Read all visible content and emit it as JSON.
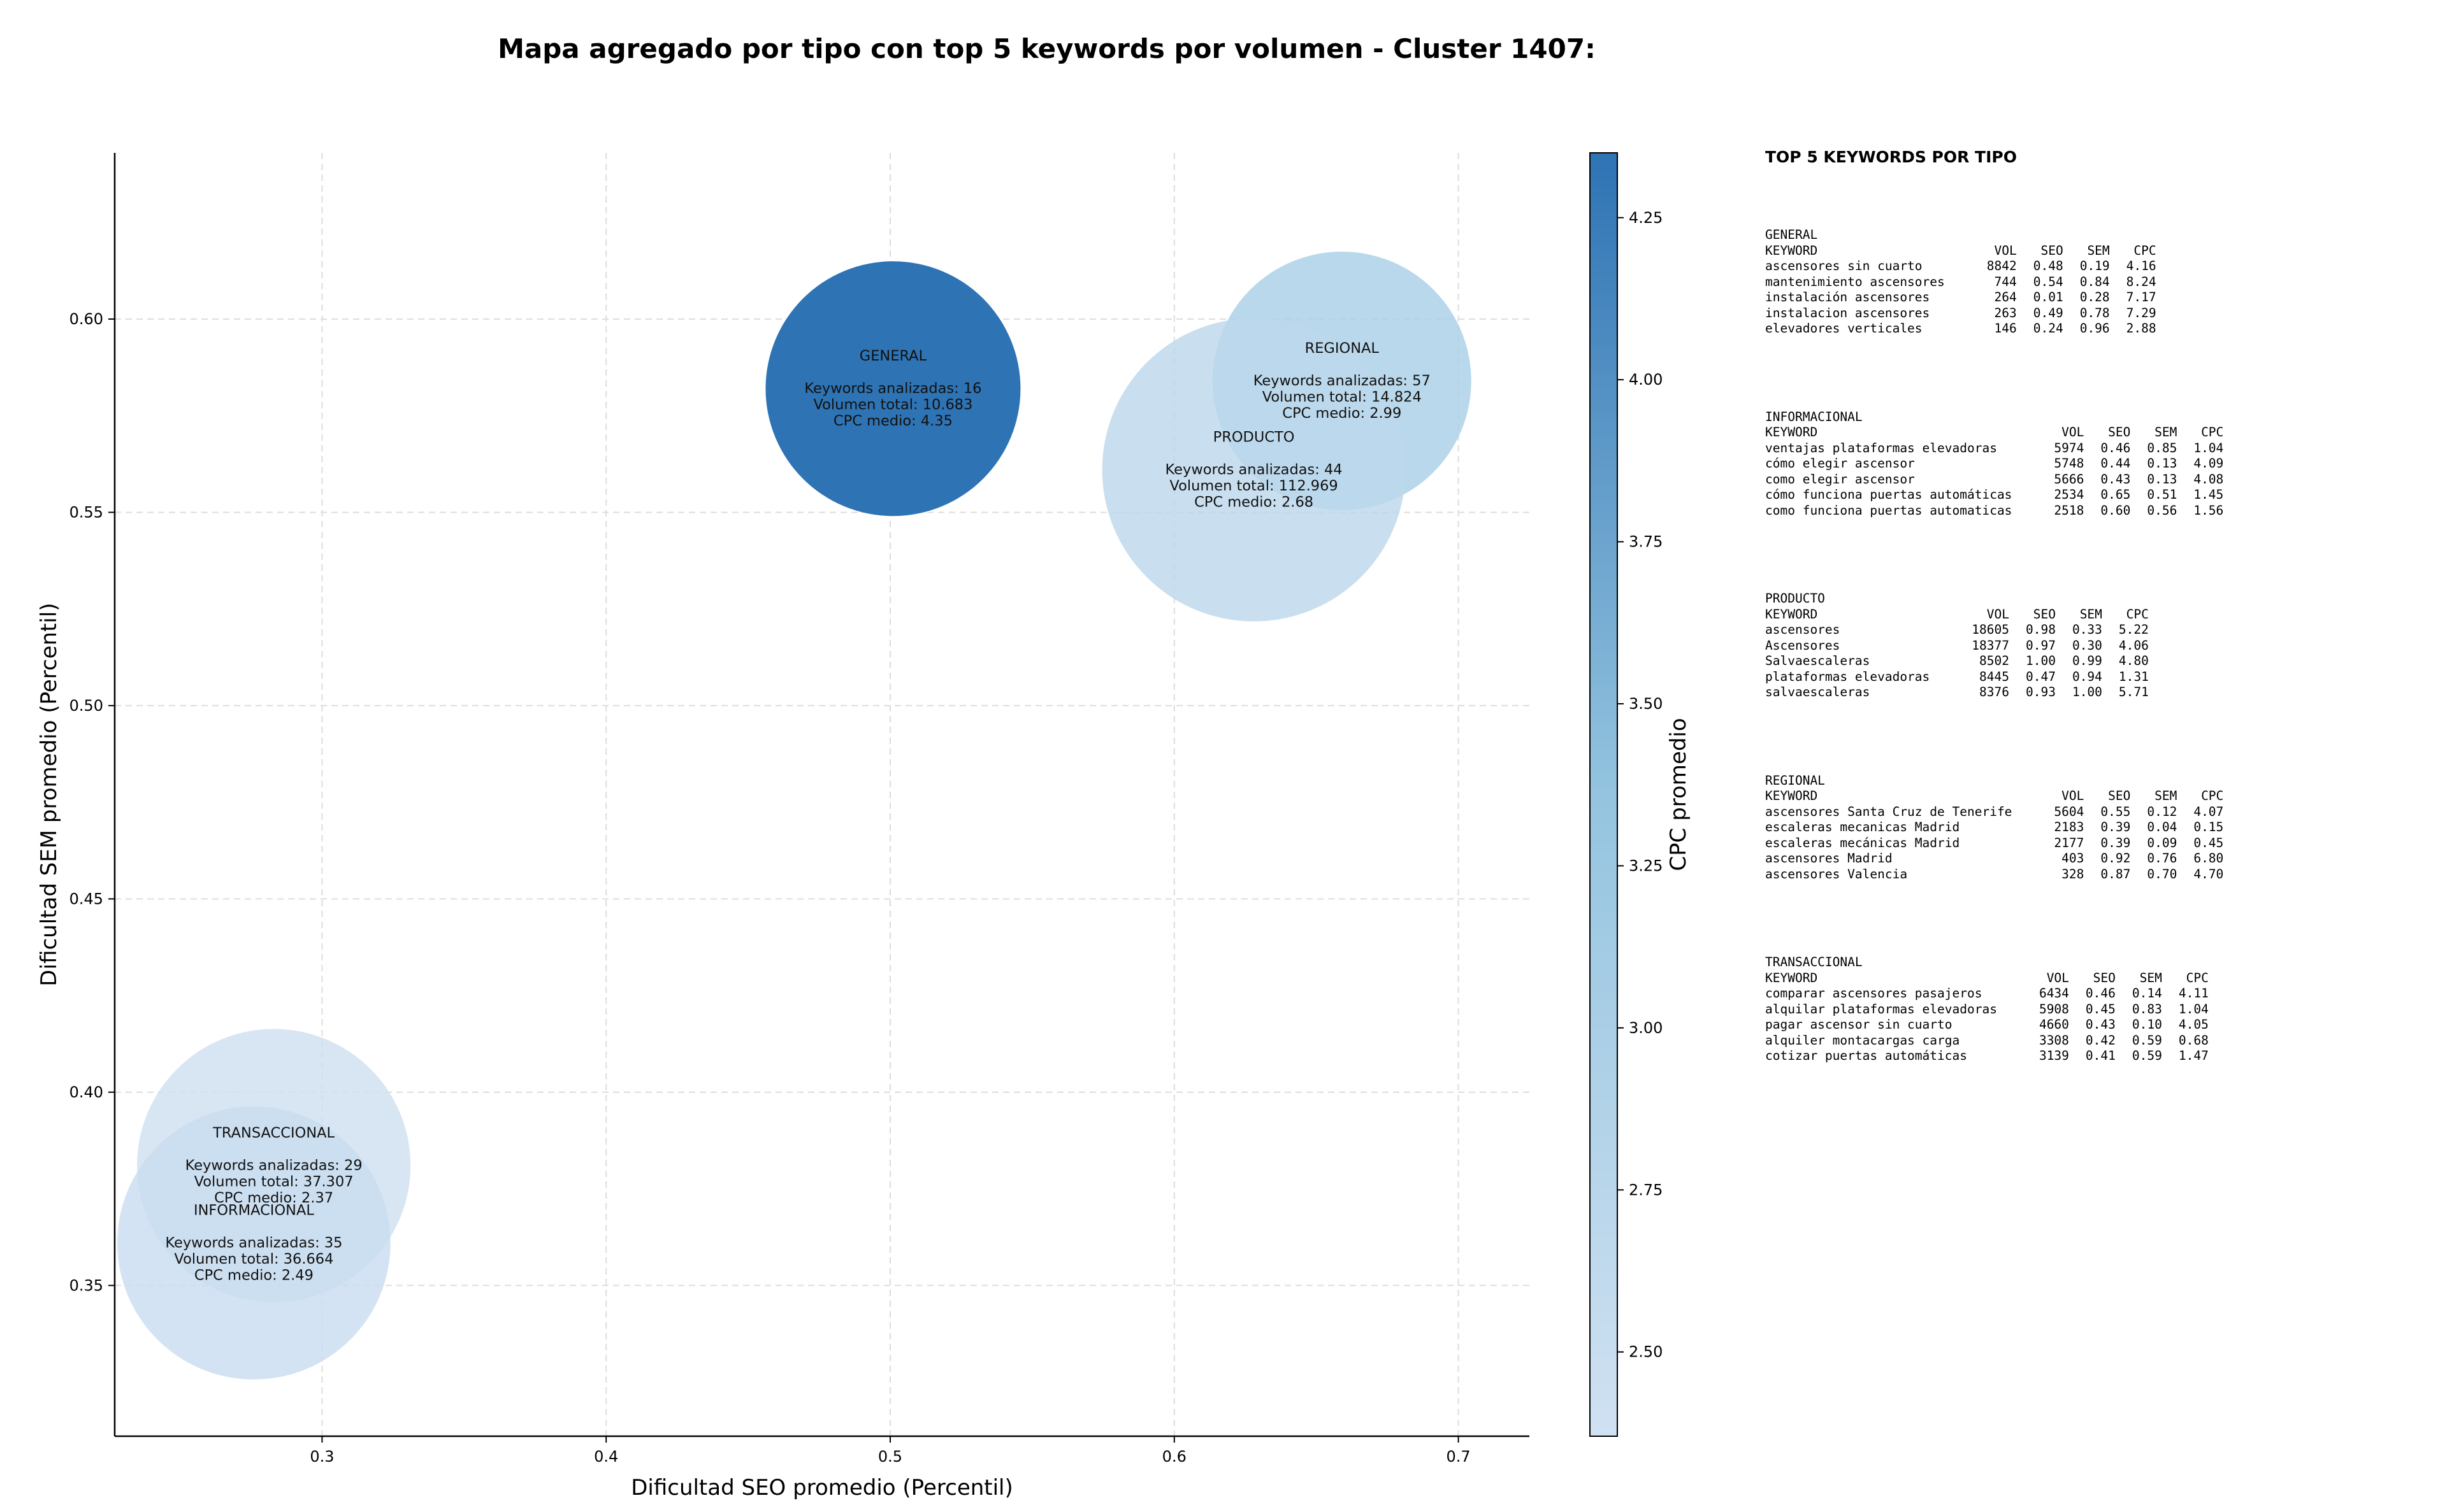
{
  "title": "Mapa agregado por tipo con top 5 keywords por volumen - Cluster 1407:",
  "chart_data": {
    "type": "scatter",
    "xlabel": "Dificultad SEO promedio (Percentil)",
    "ylabel": "Dificultad SEM promedio (Percentil)",
    "xlim": [
      0.227,
      0.725
    ],
    "ylim": [
      0.311,
      0.643
    ],
    "xticks": [
      0.3,
      0.4,
      0.5,
      0.6,
      0.7
    ],
    "yticks": [
      0.35,
      0.4,
      0.45,
      0.5,
      0.55,
      0.6
    ],
    "grid": true,
    "colorbar": {
      "label": "CPC promedio",
      "min": 2.37,
      "max": 4.35,
      "ticks": [
        2.5,
        2.75,
        3.0,
        3.25,
        3.5,
        3.75,
        4.0,
        4.25
      ],
      "tick_labels": [
        "2.50",
        "2.75",
        "3.00",
        "3.25",
        "3.50",
        "3.75",
        "4.00",
        "4.25"
      ],
      "color_low": "#d0e1f2",
      "color_high": "#2e73b4"
    },
    "bubbles": [
      {
        "name": "GENERAL",
        "x": 0.501,
        "y": 0.582,
        "keywords": 16,
        "volume": 10683,
        "cpc": 4.35,
        "label_lines": [
          "GENERAL",
          "",
          "Keywords analizadas: 16",
          "Volumen total: 10.683",
          "CPC medio: 4.35"
        ]
      },
      {
        "name": "REGIONAL",
        "x": 0.659,
        "y": 0.584,
        "keywords": 57,
        "volume": 14824,
        "cpc": 2.99,
        "label_lines": [
          "REGIONAL",
          "",
          "Keywords analizadas: 57",
          "Volumen total: 14.824",
          "CPC medio: 2.99"
        ]
      },
      {
        "name": "PRODUCTO",
        "x": 0.628,
        "y": 0.561,
        "keywords": 44,
        "volume": 112969,
        "cpc": 2.68,
        "label_lines": [
          "PRODUCTO",
          "",
          "Keywords analizadas: 44",
          "Volumen total: 112.969",
          "CPC medio: 2.68"
        ]
      },
      {
        "name": "TRANSACCIONAL",
        "x": 0.283,
        "y": 0.381,
        "keywords": 29,
        "volume": 37307,
        "cpc": 2.37,
        "label_lines": [
          "TRANSACCIONAL",
          "",
          "Keywords analizadas: 29",
          "Volumen total: 37.307",
          "CPC medio: 2.37"
        ]
      },
      {
        "name": "INFORMACIONAL",
        "x": 0.276,
        "y": 0.361,
        "keywords": 35,
        "volume": 36664,
        "cpc": 2.49,
        "label_lines": [
          "INFORMACIONAL",
          "",
          "Keywords analizadas: 35",
          "Volumen total: 36.664",
          "CPC medio: 2.49"
        ]
      }
    ]
  },
  "keywords_panel": {
    "header": "TOP 5 KEYWORDS POR TIPO",
    "columns": [
      "KEYWORD",
      "VOL",
      "SEO",
      "SEM",
      "CPC"
    ],
    "groups": [
      {
        "type": "GENERAL",
        "rows": [
          [
            "ascensores sin cuarto",
            "8842",
            "0.48",
            "0.19",
            "4.16"
          ],
          [
            "mantenimiento ascensores",
            "744",
            "0.54",
            "0.84",
            "8.24"
          ],
          [
            "instalación ascensores",
            "264",
            "0.01",
            "0.28",
            "7.17"
          ],
          [
            "instalacion ascensores",
            "263",
            "0.49",
            "0.78",
            "7.29"
          ],
          [
            "elevadores verticales",
            "146",
            "0.24",
            "0.96",
            "2.88"
          ]
        ]
      },
      {
        "type": "INFORMACIONAL",
        "rows": [
          [
            "ventajas plataformas elevadoras",
            "5974",
            "0.46",
            "0.85",
            "1.04"
          ],
          [
            "cómo elegir ascensor",
            "5748",
            "0.44",
            "0.13",
            "4.09"
          ],
          [
            "como elegir ascensor",
            "5666",
            "0.43",
            "0.13",
            "4.08"
          ],
          [
            "cómo funciona puertas automáticas",
            "2534",
            "0.65",
            "0.51",
            "1.45"
          ],
          [
            "como funciona puertas automaticas",
            "2518",
            "0.60",
            "0.56",
            "1.56"
          ]
        ]
      },
      {
        "type": "PRODUCTO",
        "rows": [
          [
            "ascensores",
            "18605",
            "0.98",
            "0.33",
            "5.22"
          ],
          [
            "Ascensores",
            "18377",
            "0.97",
            "0.30",
            "4.06"
          ],
          [
            "Salvaescaleras",
            "8502",
            "1.00",
            "0.99",
            "4.80"
          ],
          [
            "plataformas elevadoras",
            "8445",
            "0.47",
            "0.94",
            "1.31"
          ],
          [
            "salvaescaleras",
            "8376",
            "0.93",
            "1.00",
            "5.71"
          ]
        ]
      },
      {
        "type": "REGIONAL",
        "rows": [
          [
            "ascensores Santa Cruz de Tenerife",
            "5604",
            "0.55",
            "0.12",
            "4.07"
          ],
          [
            "escaleras mecanicas Madrid",
            "2183",
            "0.39",
            "0.04",
            "0.15"
          ],
          [
            "escaleras mecánicas Madrid",
            "2177",
            "0.39",
            "0.09",
            "0.45"
          ],
          [
            "ascensores Madrid",
            "403",
            "0.92",
            "0.76",
            "6.80"
          ],
          [
            "ascensores Valencia",
            "328",
            "0.87",
            "0.70",
            "4.70"
          ]
        ]
      },
      {
        "type": "TRANSACCIONAL",
        "rows": [
          [
            "comparar ascensores pasajeros",
            "6434",
            "0.46",
            "0.14",
            "4.11"
          ],
          [
            "alquilar plataformas elevadoras",
            "5908",
            "0.45",
            "0.83",
            "1.04"
          ],
          [
            "pagar ascensor sin cuarto",
            "4660",
            "0.43",
            "0.10",
            "4.05"
          ],
          [
            "alquiler montacargas carga",
            "3308",
            "0.42",
            "0.59",
            "0.68"
          ],
          [
            "cotizar puertas automáticas",
            "3139",
            "0.41",
            "0.59",
            "1.47"
          ]
        ]
      }
    ]
  }
}
